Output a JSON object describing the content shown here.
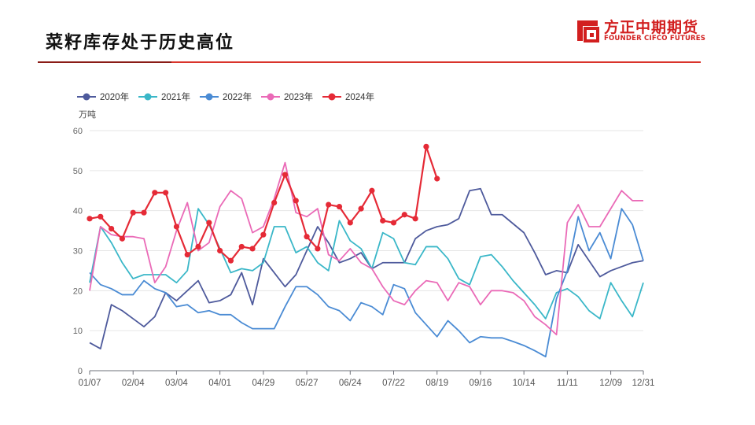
{
  "header": {
    "title": "菜籽库存处于历史高位",
    "brand_cn": "方正中期期货",
    "brand_en": "FOUNDER CIFCO FUTURES",
    "accent_color": "#d9342b"
  },
  "chart_data": {
    "type": "line",
    "title": "",
    "xlabel": "",
    "ylabel": "万吨",
    "ylim": [
      0,
      60
    ],
    "yticks": [
      0,
      10,
      20,
      30,
      40,
      50,
      60
    ],
    "x_ticks": [
      "01/07",
      "02/04",
      "03/04",
      "04/01",
      "04/29",
      "05/27",
      "06/24",
      "07/22",
      "08/19",
      "09/16",
      "10/14",
      "11/11",
      "12/09",
      "12/31"
    ],
    "x_tick_weeks": [
      0,
      4,
      8,
      12,
      16,
      20,
      24,
      28,
      32,
      36,
      40,
      44,
      48,
      51
    ],
    "x_range_weeks": [
      0,
      51
    ],
    "grid": "horizontal",
    "legend_position": "top-left",
    "series": [
      {
        "name": "2020年",
        "color": "#4e5a9c",
        "values": [
          7,
          5.5,
          16.5,
          15,
          13,
          11,
          13.5,
          19.5,
          17.5,
          20,
          22.5,
          17,
          17.5,
          19,
          24.5,
          16.5,
          28,
          24.5,
          21,
          24,
          30,
          36,
          32,
          27,
          28,
          29.5,
          25.5,
          27,
          27,
          27,
          33,
          35,
          36,
          36.5,
          38,
          45,
          45.5,
          39,
          39,
          null,
          34.5,
          29.5,
          24,
          25,
          24.5,
          31.5,
          27.5,
          23.5,
          25,
          26,
          27,
          27.5
        ]
      },
      {
        "name": "2021年",
        "color": "#3ab7c8",
        "values": [
          22,
          36,
          32,
          27,
          23,
          24,
          24,
          24,
          22,
          25,
          40.5,
          36.5,
          30.5,
          24.5,
          25.5,
          25,
          27,
          36,
          36,
          29.5,
          31,
          27,
          25,
          37.5,
          32.5,
          30.5,
          25.5,
          34.5,
          33,
          27,
          26.5,
          31,
          31,
          28,
          23,
          21.5,
          28.5,
          29,
          26,
          22.5,
          19.5,
          16.5,
          13,
          19.5,
          20.5,
          18.5,
          15,
          13,
          22,
          17.5,
          13.5,
          22
        ]
      },
      {
        "name": "2022年",
        "color": "#4a8bd4",
        "values": [
          24.5,
          21.5,
          20.5,
          19,
          19,
          22.5,
          20.5,
          19.5,
          16,
          16.5,
          14.5,
          15,
          14,
          14,
          12,
          10.5,
          10.5,
          10.5,
          16,
          21,
          21,
          19,
          16,
          15,
          12.5,
          17,
          16,
          14,
          21.5,
          20.5,
          14.5,
          11.5,
          8.5,
          12.5,
          10,
          7,
          8.5,
          8.2,
          8.2,
          7.3,
          6.3,
          5,
          3.5,
          18,
          25,
          38.5,
          30,
          34.5,
          28,
          40.5,
          36.5,
          27.5
        ]
      },
      {
        "name": "2023年",
        "color": "#ea6ab7",
        "values": [
          20,
          36,
          34,
          33.5,
          33.5,
          33,
          22,
          26,
          35,
          42,
          30,
          32,
          41,
          45,
          43,
          34.5,
          36,
          43,
          52,
          39.5,
          38.5,
          40.5,
          29,
          27.5,
          30.5,
          27,
          25.5,
          21,
          17.5,
          16.5,
          20,
          22.5,
          22,
          17.5,
          22,
          21,
          16.5,
          20,
          20,
          19.5,
          17.5,
          13.5,
          11.5,
          9,
          37,
          41.5,
          36,
          36,
          40.5,
          45,
          42.5,
          42.5
        ]
      },
      {
        "name": "2024年",
        "color": "#e52a36",
        "values": [
          38,
          38.5,
          35.5,
          33,
          39.5,
          39.5,
          44.5,
          44.5,
          36,
          29,
          31,
          37,
          30,
          27.5,
          31,
          30.5,
          34,
          42,
          49,
          42.5,
          33.5,
          30.5,
          41.5,
          41,
          37,
          40.5,
          45,
          37.5,
          37,
          39,
          38,
          56,
          48
        ]
      }
    ]
  }
}
